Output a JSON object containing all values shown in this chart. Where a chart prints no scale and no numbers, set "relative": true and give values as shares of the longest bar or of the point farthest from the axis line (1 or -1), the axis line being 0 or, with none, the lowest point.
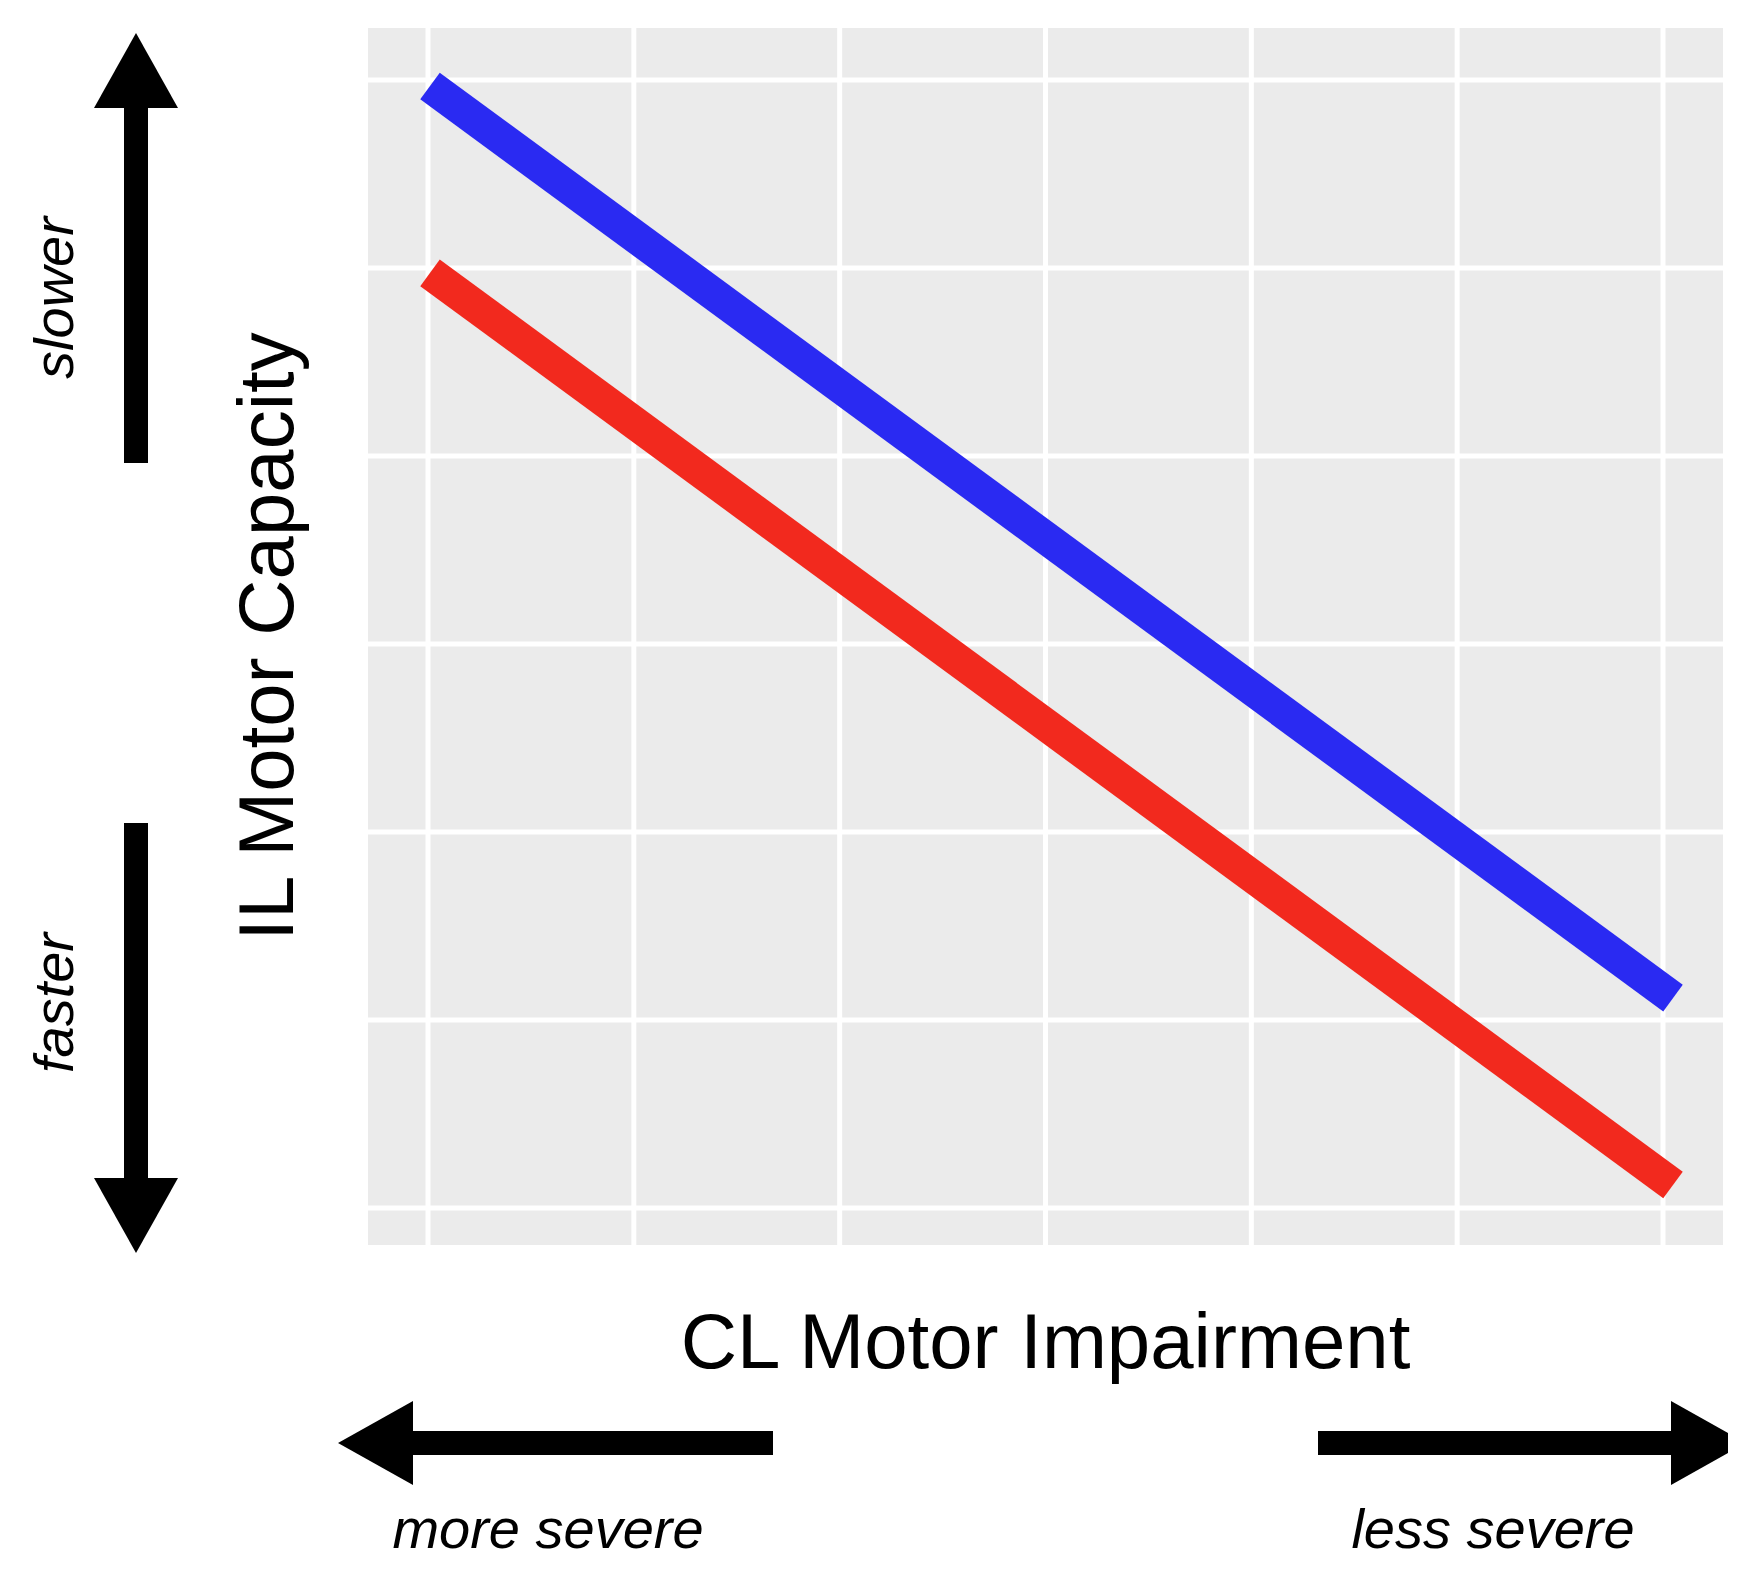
{
  "chart_data": {
    "type": "line",
    "relative": true,
    "xlabel": "CL Motor Impairment",
    "ylabel": "IL Motor Capacity",
    "categories": [
      null,
      null
    ],
    "grid": true,
    "series": [
      {
        "color": "#2a2af2",
        "values": [
          1,
          0.17
        ]
      },
      {
        "color": "#f2291e",
        "values": [
          0.83,
          0
        ]
      }
    ],
    "annotations": [
      "slower",
      "faster",
      "more severe",
      "less severe"
    ]
  }
}
